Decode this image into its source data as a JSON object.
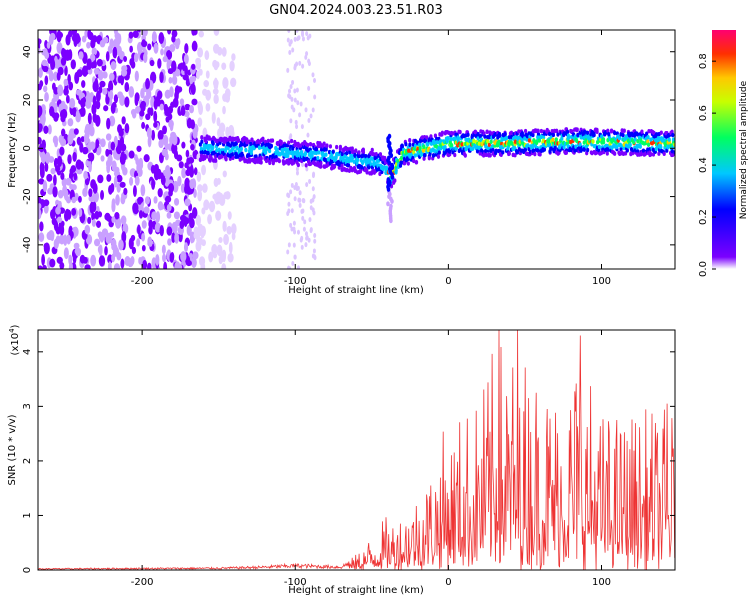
{
  "title": "GN04.2024.003.23.51.R03",
  "chart_data": [
    {
      "type": "heatmap",
      "title": "GN04.2024.003.23.51.R03",
      "xlabel": "Height of straight line (km)",
      "ylabel": "Frequency (Hz)",
      "xlim": [
        -268,
        148
      ],
      "ylim": [
        -50,
        49
      ],
      "xticks": [
        -200,
        -100,
        0,
        100
      ],
      "yticks": [
        -40,
        -20,
        0,
        20,
        40
      ],
      "grid": false,
      "colorbar": {
        "label": "Normalized spectral amplitude",
        "range": [
          0,
          0.92
        ],
        "ticks": [
          "0.0",
          "0.2",
          "0.4",
          "0.6",
          "0.8"
        ],
        "colors": [
          "#ffffff",
          "#7b00ff",
          "#0000ff",
          "#00c8ff",
          "#00ff60",
          "#c8ff00",
          "#ffc800",
          "#ff3000",
          "#ff0070"
        ]
      },
      "band_centerline": [
        {
          "x": -160,
          "y": 0
        },
        {
          "x": -120,
          "y": -1
        },
        {
          "x": -80,
          "y": -3
        },
        {
          "x": -60,
          "y": -5
        },
        {
          "x": -45,
          "y": -6
        },
        {
          "x": -38,
          "y": -12
        },
        {
          "x": -30,
          "y": -2
        },
        {
          "x": 0,
          "y": 2
        },
        {
          "x": 40,
          "y": 2
        },
        {
          "x": 80,
          "y": 3
        },
        {
          "x": 148,
          "y": 2
        }
      ],
      "noise_region": {
        "x_from": -268,
        "x_to": -160,
        "level": "low"
      }
    },
    {
      "type": "line",
      "xlabel": "Height of straight line (km)",
      "ylabel": "SNR (10 * v/v)",
      "multiplier_label": "(x10",
      "multiplier_exp": "4",
      "multiplier_close": ")",
      "xlim": [
        -268,
        148
      ],
      "ylim": [
        0,
        4.4
      ],
      "xticks": [
        -200,
        -100,
        0,
        100
      ],
      "yticks": [
        0,
        1,
        2,
        3,
        4
      ],
      "color": "#ee3333",
      "envelope": [
        {
          "x": -268,
          "y": 0.03
        },
        {
          "x": -150,
          "y": 0.05
        },
        {
          "x": -120,
          "y": 0.08
        },
        {
          "x": -100,
          "y": 0.12
        },
        {
          "x": -70,
          "y": 0.08
        },
        {
          "x": -60,
          "y": 0.3
        },
        {
          "x": -45,
          "y": 0.9
        },
        {
          "x": -30,
          "y": 1.2
        },
        {
          "x": -20,
          "y": 1.6
        },
        {
          "x": -10,
          "y": 2.2
        },
        {
          "x": 0,
          "y": 2.8
        },
        {
          "x": 20,
          "y": 3.3
        },
        {
          "x": 33,
          "y": 4.4
        },
        {
          "x": 50,
          "y": 4.1
        },
        {
          "x": 70,
          "y": 3.6
        },
        {
          "x": 85,
          "y": 4.3
        },
        {
          "x": 100,
          "y": 3.0
        },
        {
          "x": 120,
          "y": 3.0
        },
        {
          "x": 148,
          "y": 3.0
        }
      ],
      "peaks": [
        {
          "x": 33,
          "y": 4.4
        },
        {
          "x": 45,
          "y": 4.4
        },
        {
          "x": 86,
          "y": 4.3
        },
        {
          "x": 143,
          "y": 3.05
        }
      ]
    }
  ]
}
